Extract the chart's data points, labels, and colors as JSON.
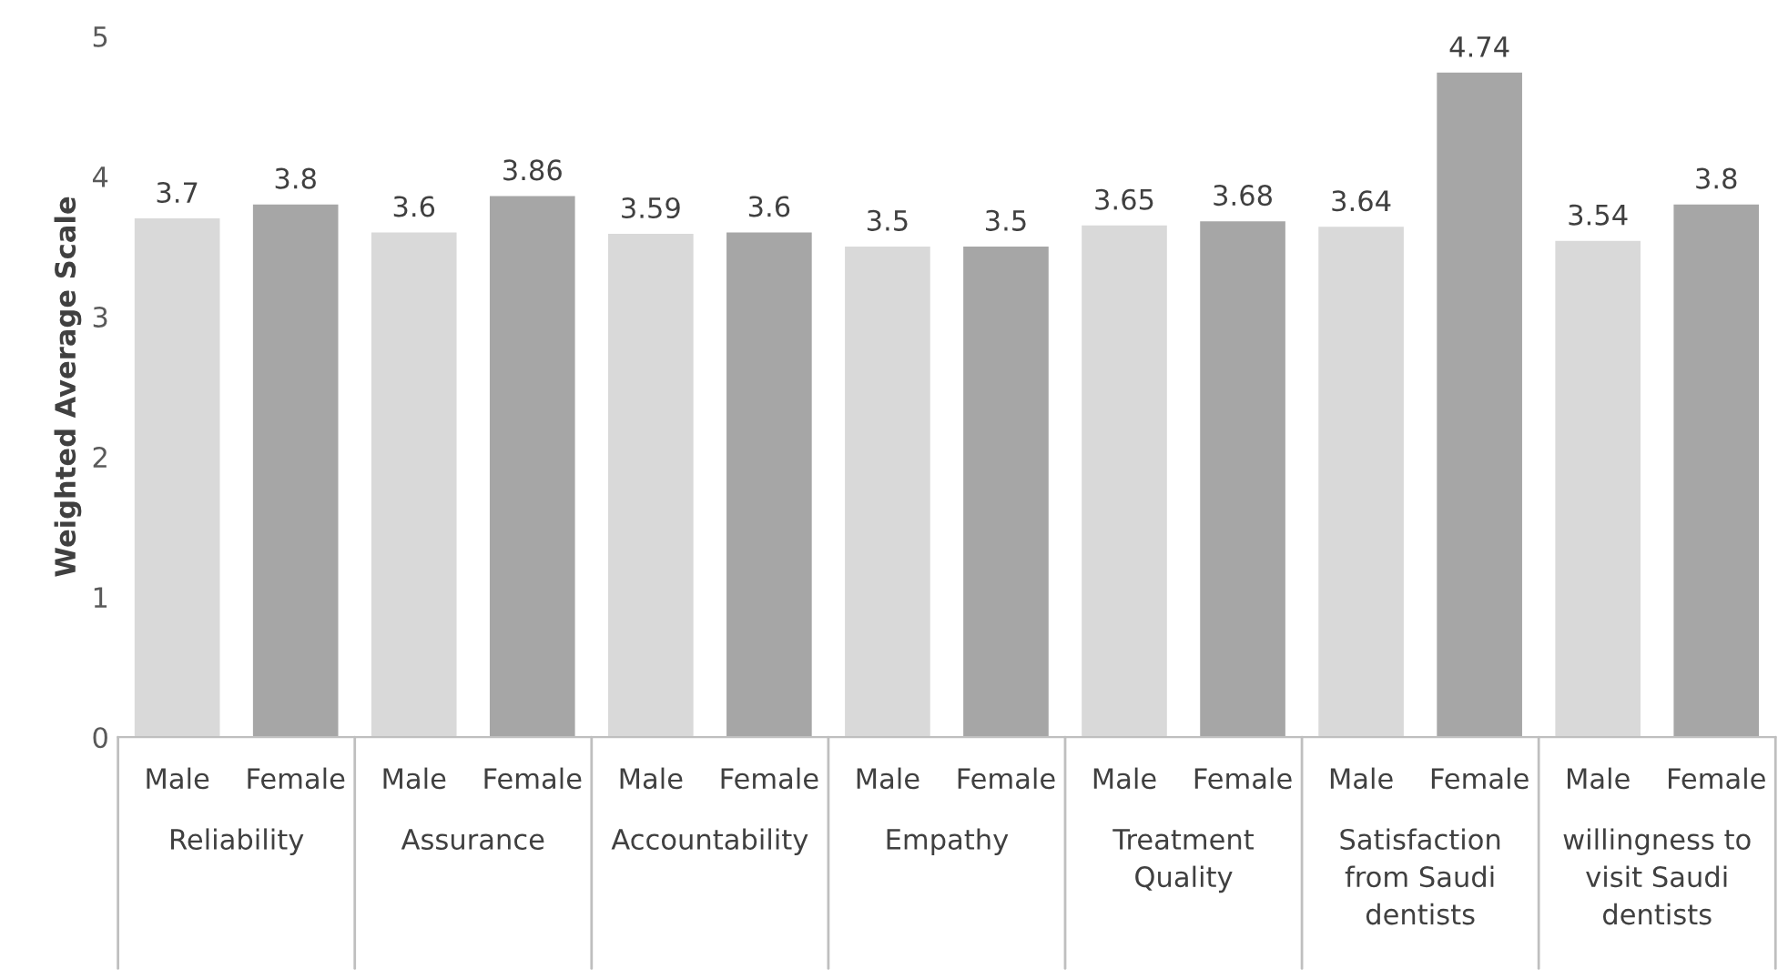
{
  "chart_data": {
    "type": "bar",
    "ylabel": "Weighted Average Scale",
    "categories": [
      "Male",
      "Female",
      "Male",
      "Female",
      "Male",
      "Female",
      "Male",
      "Female",
      "Male",
      "Female",
      "Male",
      "Female",
      "Male",
      "Female"
    ],
    "values": [
      3.7,
      3.8,
      3.6,
      3.86,
      3.59,
      3.6,
      3.5,
      3.5,
      3.65,
      3.68,
      3.64,
      4.74,
      3.54,
      3.8
    ],
    "colors": [
      "#d9d9d9",
      "#a6a6a6",
      "#d9d9d9",
      "#a6a6a6",
      "#d9d9d9",
      "#a6a6a6",
      "#d9d9d9",
      "#a6a6a6",
      "#d9d9d9",
      "#a6a6a6",
      "#d9d9d9",
      "#a6a6a6",
      "#d9d9d9",
      "#a6a6a6"
    ],
    "data_labels": true,
    "annotations": [
      "Reliability",
      "Assurance",
      "Accountability",
      "Empathy",
      "Treatment Quality",
      "Satisfaction from Saudi dentists",
      "willingness to visit Saudi dentists"
    ],
    "ylim": [
      0,
      5
    ],
    "yticks": [
      0,
      1,
      2,
      3,
      4,
      5
    ],
    "grid": false
  }
}
